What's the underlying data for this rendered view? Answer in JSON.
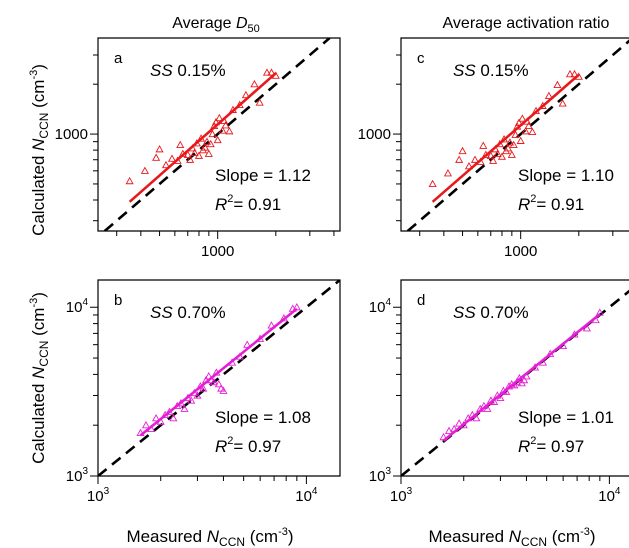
{
  "colors": {
    "red_series": "#e8191c",
    "magenta_series": "#e61fd6",
    "one_to_one": "#000000"
  },
  "column_titles": {
    "left": {
      "pre": "Average ",
      "sym": "D",
      "sub": "50"
    },
    "right": "Average activation ratio"
  },
  "y_label": {
    "pre": "Calculated ",
    "sym": "N",
    "sub": "CCN",
    "unit_pre": " (cm",
    "sup": "-3",
    "unit_post": ")"
  },
  "x_label": {
    "pre": "Measured ",
    "sym": "N",
    "sub": "CCN",
    "unit_pre": " (cm",
    "sup": "-3",
    "unit_post": ")"
  },
  "chart_data": [
    {
      "type": "scatter",
      "panel": "a",
      "ss": "0.15%",
      "slope": "Slope = 1.12",
      "r2": "0.91",
      "log": true,
      "xlim": [
        240,
        4300
      ],
      "ylim": [
        260,
        3800
      ],
      "x_ticks": [
        {
          "v": 1000,
          "label": "1000"
        }
      ],
      "y_ticks": [
        {
          "v": 1000,
          "label": "1000"
        }
      ],
      "fit": {
        "x": [
          350,
          2000
        ],
        "y": [
          390,
          2330
        ]
      },
      "points": [
        [
          350,
          520
        ],
        [
          420,
          600
        ],
        [
          480,
          720
        ],
        [
          500,
          810
        ],
        [
          540,
          650
        ],
        [
          580,
          710
        ],
        [
          620,
          690
        ],
        [
          640,
          860
        ],
        [
          660,
          760
        ],
        [
          700,
          750
        ],
        [
          720,
          700
        ],
        [
          740,
          820
        ],
        [
          760,
          770
        ],
        [
          780,
          880
        ],
        [
          800,
          740
        ],
        [
          820,
          940
        ],
        [
          840,
          800
        ],
        [
          860,
          830
        ],
        [
          880,
          900
        ],
        [
          900,
          760
        ],
        [
          920,
          870
        ],
        [
          940,
          1000
        ],
        [
          960,
          1120
        ],
        [
          980,
          1180
        ],
        [
          1000,
          920
        ],
        [
          1020,
          1250
        ],
        [
          1060,
          1050
        ],
        [
          1080,
          1200
        ],
        [
          1100,
          1130
        ],
        [
          1150,
          1040
        ],
        [
          1200,
          1400
        ],
        [
          1300,
          1500
        ],
        [
          1400,
          1720
        ],
        [
          1550,
          2000
        ],
        [
          1650,
          1550
        ],
        [
          1800,
          2350
        ],
        [
          1900,
          2350
        ],
        [
          2000,
          2250
        ]
      ]
    },
    {
      "type": "scatter",
      "panel": "c",
      "ss": "0.15%",
      "slope": "Slope = 1.10",
      "r2": "0.91",
      "log": true,
      "xlim": [
        240,
        4300
      ],
      "ylim": [
        260,
        3800
      ],
      "x_ticks": [
        {
          "v": 1000,
          "label": "1000"
        }
      ],
      "y_ticks": [
        {
          "v": 1000,
          "label": "1000"
        }
      ],
      "fit": {
        "x": [
          350,
          2000
        ],
        "y": [
          390,
          2280
        ]
      },
      "points": [
        [
          350,
          500
        ],
        [
          420,
          580
        ],
        [
          480,
          700
        ],
        [
          500,
          790
        ],
        [
          540,
          640
        ],
        [
          580,
          700
        ],
        [
          620,
          680
        ],
        [
          640,
          850
        ],
        [
          660,
          750
        ],
        [
          700,
          740
        ],
        [
          720,
          690
        ],
        [
          740,
          810
        ],
        [
          760,
          760
        ],
        [
          780,
          870
        ],
        [
          800,
          730
        ],
        [
          820,
          930
        ],
        [
          840,
          790
        ],
        [
          860,
          820
        ],
        [
          880,
          890
        ],
        [
          900,
          750
        ],
        [
          920,
          860
        ],
        [
          940,
          990
        ],
        [
          960,
          1110
        ],
        [
          980,
          1170
        ],
        [
          1000,
          910
        ],
        [
          1020,
          1240
        ],
        [
          1060,
          1040
        ],
        [
          1080,
          1190
        ],
        [
          1100,
          1120
        ],
        [
          1150,
          1030
        ],
        [
          1200,
          1380
        ],
        [
          1300,
          1480
        ],
        [
          1400,
          1700
        ],
        [
          1550,
          1980
        ],
        [
          1650,
          1530
        ],
        [
          1800,
          2300
        ],
        [
          1900,
          2300
        ],
        [
          2000,
          2220
        ]
      ]
    },
    {
      "type": "scatter",
      "panel": "b",
      "ss": "0.70%",
      "slope": "Slope = 1.08",
      "r2": "0.97",
      "log": true,
      "xlim": [
        1000,
        14500
      ],
      "ylim": [
        1000,
        14500
      ],
      "x_ticks": [
        {
          "v": 1000,
          "base": "10",
          "exp": "3"
        },
        {
          "v": 10000,
          "base": "10",
          "exp": "4"
        }
      ],
      "y_ticks": [
        {
          "v": 1000,
          "base": "10",
          "exp": "3"
        },
        {
          "v": 10000,
          "base": "10",
          "exp": "4"
        }
      ],
      "fit": {
        "x": [
          1600,
          9000
        ],
        "y": [
          1740,
          9800
        ]
      },
      "points": [
        [
          1600,
          1800
        ],
        [
          1700,
          2000
        ],
        [
          1800,
          1900
        ],
        [
          1900,
          2200
        ],
        [
          2000,
          2100
        ],
        [
          2100,
          2300
        ],
        [
          2200,
          2400
        ],
        [
          2300,
          2200
        ],
        [
          2400,
          2600
        ],
        [
          2500,
          2700
        ],
        [
          2600,
          2500
        ],
        [
          2700,
          2900
        ],
        [
          2800,
          2800
        ],
        [
          2900,
          3100
        ],
        [
          3000,
          3000
        ],
        [
          3100,
          3400
        ],
        [
          3200,
          3300
        ],
        [
          3300,
          3700
        ],
        [
          3400,
          3900
        ],
        [
          3500,
          3700
        ],
        [
          3600,
          3600
        ],
        [
          3700,
          4100
        ],
        [
          3800,
          3500
        ],
        [
          3900,
          3300
        ],
        [
          4000,
          3200
        ],
        [
          4400,
          4700
        ],
        [
          4800,
          5100
        ],
        [
          5200,
          6000
        ],
        [
          6000,
          6500
        ],
        [
          6800,
          7800
        ],
        [
          7800,
          8600
        ],
        [
          8600,
          9800
        ],
        [
          9000,
          10000
        ]
      ]
    },
    {
      "type": "scatter",
      "panel": "d",
      "ss": "0.70%",
      "slope": "Slope = 1.01",
      "r2": "0.97",
      "log": true,
      "xlim": [
        1000,
        14500
      ],
      "ylim": [
        1000,
        14500
      ],
      "x_ticks": [
        {
          "v": 1000,
          "base": "10",
          "exp": "3"
        },
        {
          "v": 10000,
          "base": "10",
          "exp": "4"
        }
      ],
      "y_ticks": [
        {
          "v": 1000,
          "base": "10",
          "exp": "3"
        },
        {
          "v": 10000,
          "base": "10",
          "exp": "4"
        }
      ],
      "fit": {
        "x": [
          1600,
          9000
        ],
        "y": [
          1620,
          9100
        ]
      },
      "points": [
        [
          1600,
          1700
        ],
        [
          1700,
          1850
        ],
        [
          1800,
          1900
        ],
        [
          1900,
          2050
        ],
        [
          2000,
          2000
        ],
        [
          2100,
          2200
        ],
        [
          2200,
          2300
        ],
        [
          2300,
          2200
        ],
        [
          2400,
          2500
        ],
        [
          2500,
          2600
        ],
        [
          2600,
          2500
        ],
        [
          2700,
          2800
        ],
        [
          2800,
          2750
        ],
        [
          2900,
          3000
        ],
        [
          3000,
          2900
        ],
        [
          3100,
          3200
        ],
        [
          3200,
          3150
        ],
        [
          3300,
          3400
        ],
        [
          3400,
          3500
        ],
        [
          3500,
          3450
        ],
        [
          3600,
          3600
        ],
        [
          3700,
          3800
        ],
        [
          3800,
          3550
        ],
        [
          3900,
          3700
        ],
        [
          4000,
          3900
        ],
        [
          4400,
          4400
        ],
        [
          4800,
          4700
        ],
        [
          5200,
          5300
        ],
        [
          6000,
          5900
        ],
        [
          6800,
          6900
        ],
        [
          7800,
          7500
        ],
        [
          8600,
          8400
        ],
        [
          9000,
          9300
        ]
      ]
    }
  ]
}
